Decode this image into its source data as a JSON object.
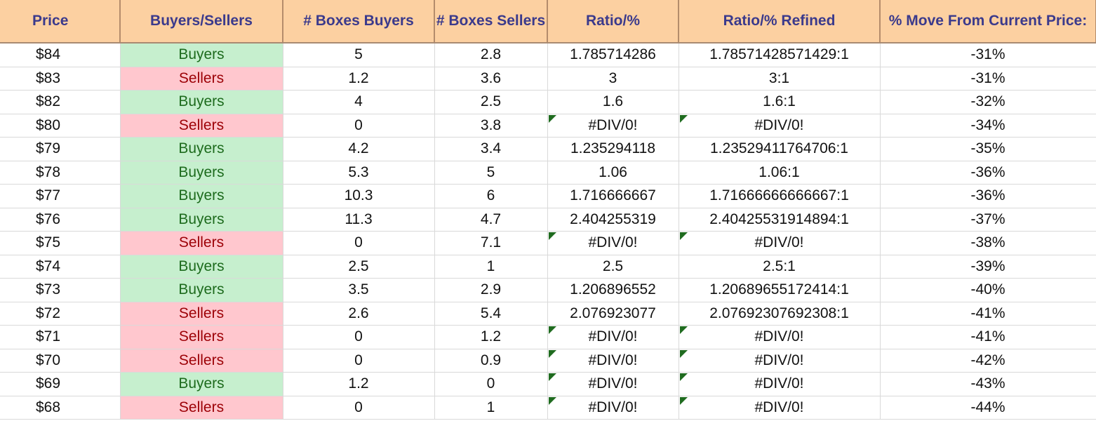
{
  "headers": [
    "Price",
    "Buyers/Sellers",
    "# Boxes Buyers",
    "# Boxes Sellers",
    "Ratio/%",
    "Ratio/% Refined",
    "% Move From Current Price:"
  ],
  "rows": [
    {
      "price": "$84",
      "side": "Buyers",
      "boxes_buyers": "5",
      "boxes_sellers": "2.8",
      "ratio": "1.785714286",
      "ratio_refined": "1.78571428571429:1",
      "move": "-31%"
    },
    {
      "price": "$83",
      "side": "Sellers",
      "boxes_buyers": "1.2",
      "boxes_sellers": "3.6",
      "ratio": "3",
      "ratio_refined": "3:1",
      "move": "-31%"
    },
    {
      "price": "$82",
      "side": "Buyers",
      "boxes_buyers": "4",
      "boxes_sellers": "2.5",
      "ratio": "1.6",
      "ratio_refined": "1.6:1",
      "move": "-32%"
    },
    {
      "price": "$80",
      "side": "Sellers",
      "boxes_buyers": "0",
      "boxes_sellers": "3.8",
      "ratio": "#DIV/0!",
      "ratio_refined": "#DIV/0!",
      "move": "-34%"
    },
    {
      "price": "$79",
      "side": "Buyers",
      "boxes_buyers": "4.2",
      "boxes_sellers": "3.4",
      "ratio": "1.235294118",
      "ratio_refined": "1.23529411764706:1",
      "move": "-35%"
    },
    {
      "price": "$78",
      "side": "Buyers",
      "boxes_buyers": "5.3",
      "boxes_sellers": "5",
      "ratio": "1.06",
      "ratio_refined": "1.06:1",
      "move": "-36%"
    },
    {
      "price": "$77",
      "side": "Buyers",
      "boxes_buyers": "10.3",
      "boxes_sellers": "6",
      "ratio": "1.716666667",
      "ratio_refined": "1.71666666666667:1",
      "move": "-36%"
    },
    {
      "price": "$76",
      "side": "Buyers",
      "boxes_buyers": "11.3",
      "boxes_sellers": "4.7",
      "ratio": "2.404255319",
      "ratio_refined": "2.40425531914894:1",
      "move": "-37%"
    },
    {
      "price": "$75",
      "side": "Sellers",
      "boxes_buyers": "0",
      "boxes_sellers": "7.1",
      "ratio": "#DIV/0!",
      "ratio_refined": "#DIV/0!",
      "move": "-38%"
    },
    {
      "price": "$74",
      "side": "Buyers",
      "boxes_buyers": "2.5",
      "boxes_sellers": "1",
      "ratio": "2.5",
      "ratio_refined": "2.5:1",
      "move": "-39%"
    },
    {
      "price": "$73",
      "side": "Buyers",
      "boxes_buyers": "3.5",
      "boxes_sellers": "2.9",
      "ratio": "1.206896552",
      "ratio_refined": "1.20689655172414:1",
      "move": "-40%"
    },
    {
      "price": "$72",
      "side": "Sellers",
      "boxes_buyers": "2.6",
      "boxes_sellers": "5.4",
      "ratio": "2.076923077",
      "ratio_refined": "2.07692307692308:1",
      "move": "-41%"
    },
    {
      "price": "$71",
      "side": "Sellers",
      "boxes_buyers": "0",
      "boxes_sellers": "1.2",
      "ratio": "#DIV/0!",
      "ratio_refined": "#DIV/0!",
      "move": "-41%"
    },
    {
      "price": "$70",
      "side": "Sellers",
      "boxes_buyers": "0",
      "boxes_sellers": "0.9",
      "ratio": "#DIV/0!",
      "ratio_refined": "#DIV/0!",
      "move": "-42%"
    },
    {
      "price": "$69",
      "side": "Buyers",
      "boxes_buyers": "1.2",
      "boxes_sellers": "0",
      "ratio": "#DIV/0!",
      "ratio_refined": "#DIV/0!",
      "move": "-43%"
    },
    {
      "price": "$68",
      "side": "Sellers",
      "boxes_buyers": "0",
      "boxes_sellers": "1",
      "ratio": "#DIV/0!",
      "ratio_refined": "#DIV/0!",
      "move": "-44%"
    }
  ],
  "colors": {
    "header_bg": "#fcd0a1",
    "header_text": "#3b3a8c",
    "buyers_bg": "#c6efce",
    "buyers_text": "#1d6b1d",
    "sellers_bg": "#ffc7ce",
    "sellers_text": "#9c0006",
    "error_marker": "#1f6b1f"
  }
}
